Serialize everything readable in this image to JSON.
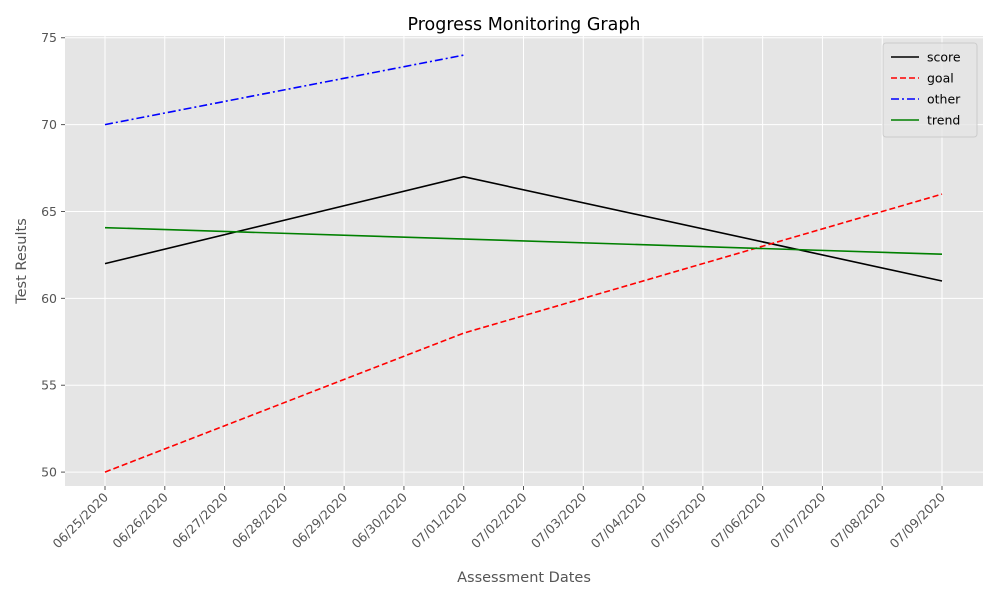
{
  "chart_data": {
    "type": "line",
    "title": "Progress Monitoring Graph",
    "xlabel": "Assessment Dates",
    "ylabel": "Test Results",
    "categories": [
      "06/25/2020",
      "06/26/2020",
      "06/27/2020",
      "06/28/2020",
      "06/29/2020",
      "06/30/2020",
      "07/01/2020",
      "07/02/2020",
      "07/03/2020",
      "07/04/2020",
      "07/05/2020",
      "07/06/2020",
      "07/07/2020",
      "07/08/2020",
      "07/09/2020"
    ],
    "ylim": [
      49.2,
      75.1
    ],
    "yticks": [
      50,
      55,
      60,
      65,
      70,
      75
    ],
    "grid": true,
    "legend_position": "top-right",
    "series": [
      {
        "name": "score",
        "color": "#000000",
        "dash": "solid",
        "points": [
          {
            "x": "06/25/2020",
            "y": 62
          },
          {
            "x": "07/01/2020",
            "y": 67
          },
          {
            "x": "07/09/2020",
            "y": 61
          }
        ]
      },
      {
        "name": "goal",
        "color": "#ff0000",
        "dash": "dashed",
        "points": [
          {
            "x": "06/25/2020",
            "y": 50
          },
          {
            "x": "07/01/2020",
            "y": 58
          },
          {
            "x": "07/09/2020",
            "y": 66
          }
        ]
      },
      {
        "name": "other",
        "color": "#0000ff",
        "dash": "dashdot",
        "points": [
          {
            "x": "06/25/2020",
            "y": 70
          },
          {
            "x": "07/01/2020",
            "y": 74
          }
        ]
      },
      {
        "name": "trend",
        "color": "#008000",
        "dash": "solid",
        "points": [
          {
            "x": "06/25/2020",
            "y": 64.07
          },
          {
            "x": "07/09/2020",
            "y": 62.54
          }
        ]
      }
    ]
  }
}
